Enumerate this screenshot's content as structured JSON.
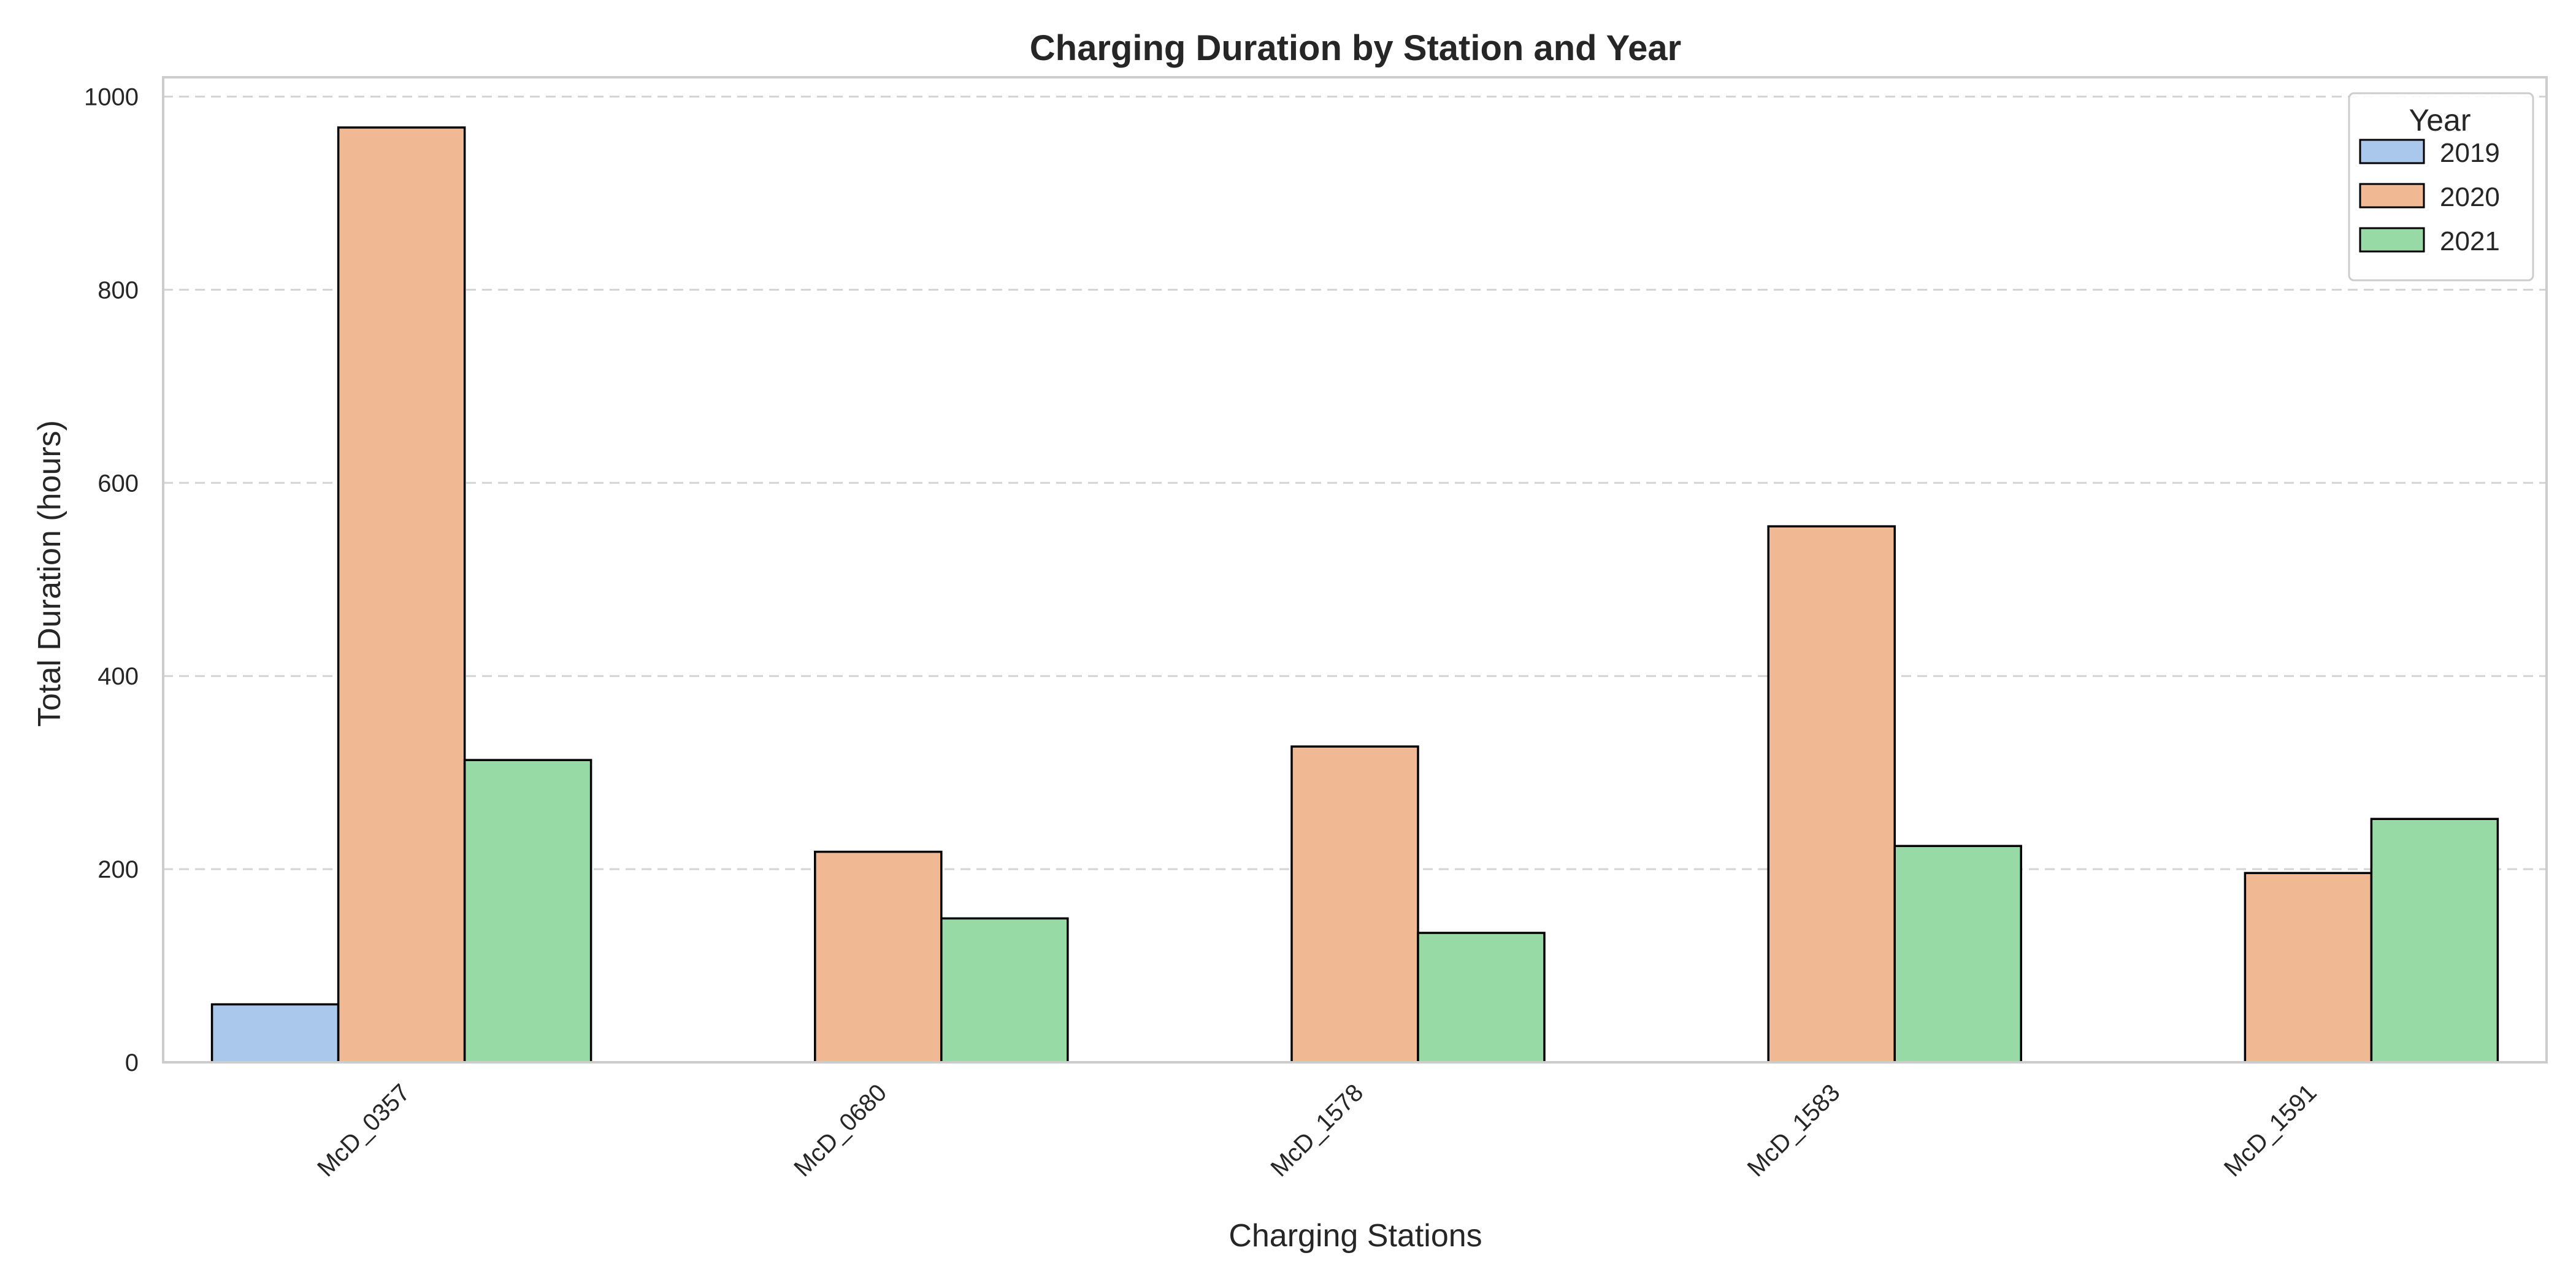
{
  "chart_data": {
    "type": "bar",
    "title": "Charging Duration by Station and Year",
    "xlabel": "Charging Stations",
    "ylabel": "Total Duration (hours)",
    "ylim": [
      0,
      1020
    ],
    "yticks": [
      0,
      200,
      400,
      600,
      800,
      1000
    ],
    "grid": true,
    "legend": {
      "title": "Year",
      "placement": "top-right"
    },
    "categories": [
      "McD_0357",
      "McD_0680",
      "McD_1578",
      "McD_1583",
      "McD_1591"
    ],
    "series": [
      {
        "name": "2019",
        "color": "#a9c8ec",
        "values": [
          60,
          null,
          null,
          null,
          null
        ]
      },
      {
        "name": "2020",
        "color": "#f0b893",
        "values": [
          968,
          218,
          327,
          555,
          196
        ]
      },
      {
        "name": "2021",
        "color": "#98daa5",
        "values": [
          313,
          149,
          134,
          224,
          252
        ]
      }
    ]
  }
}
